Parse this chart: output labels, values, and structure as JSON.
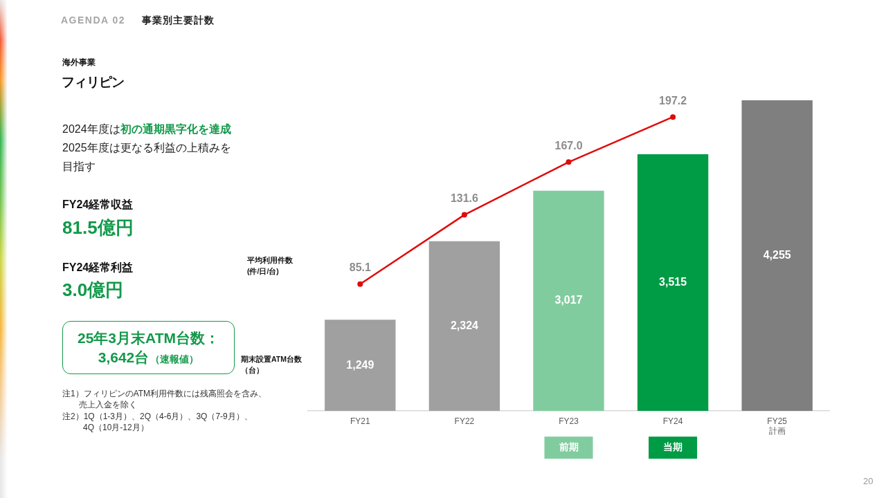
{
  "chart_data": [
    {
      "type": "other",
      "title": "フィリピン",
      "subtitle": "海外事業",
      "annotations": [
        "AGENDA 02",
        "事業別主要計数",
        "2024年度は",
        "初の通期黒字化を達成",
        "2025年度は更なる利益の上積みを目指す",
        "FY24経常収益",
        "81.5億円",
        "FY24経常利益",
        "3.0億円",
        "25年3月末ATM台数：",
        "3,642台",
        "（速報値）",
        "注1）フィリピンのATM利用件数には残高照会を含み、売上入金を除く",
        "注2）1Q（1-3月）、2Q（4-6月）、3Q（7-9月）、4Q（10月-12月）",
        "20"
      ]
    },
    {
      "type": "bar",
      "categories": [
        "FY21",
        "FY22",
        "FY23",
        "FY24",
        "FY25\n計画"
      ],
      "stacked": true,
      "legend": "bottom",
      "ylabel": "期末設置ATM台数（台）",
      "y2label": "平均利用件数(件/日/台)",
      "series": [
        {
          "type": "bar",
          "colors": [
            "#a0a0a0",
            "#a0a0a0",
            null,
            null,
            "#7f7f7f"
          ],
          "values": [
            1249,
            2324,
            null,
            null,
            4255
          ],
          "value_labels": [
            "1,249",
            "2,324",
            null,
            null,
            "4,255"
          ]
        },
        {
          "name": "前期",
          "type": "bar",
          "color": "#81cc9f",
          "values": [
            null,
            null,
            3017,
            null,
            null
          ],
          "value_labels": [
            null,
            null,
            "3,017",
            null,
            null
          ]
        },
        {
          "name": "当期",
          "type": "bar",
          "color": "#009b45",
          "values": [
            null,
            null,
            null,
            3515,
            null
          ],
          "value_labels": [
            null,
            null,
            null,
            "3,515",
            null
          ]
        },
        {
          "type": "line",
          "axis": "y2",
          "color": "#e00b0b",
          "values": [
            85.1,
            131.6,
            167.0,
            197.2,
            null
          ],
          "value_labels": [
            "85.1",
            "131.6",
            "167.0",
            "197.2",
            null
          ]
        }
      ],
      "marker": "circle",
      "tick_labels": "x"
    }
  ]
}
